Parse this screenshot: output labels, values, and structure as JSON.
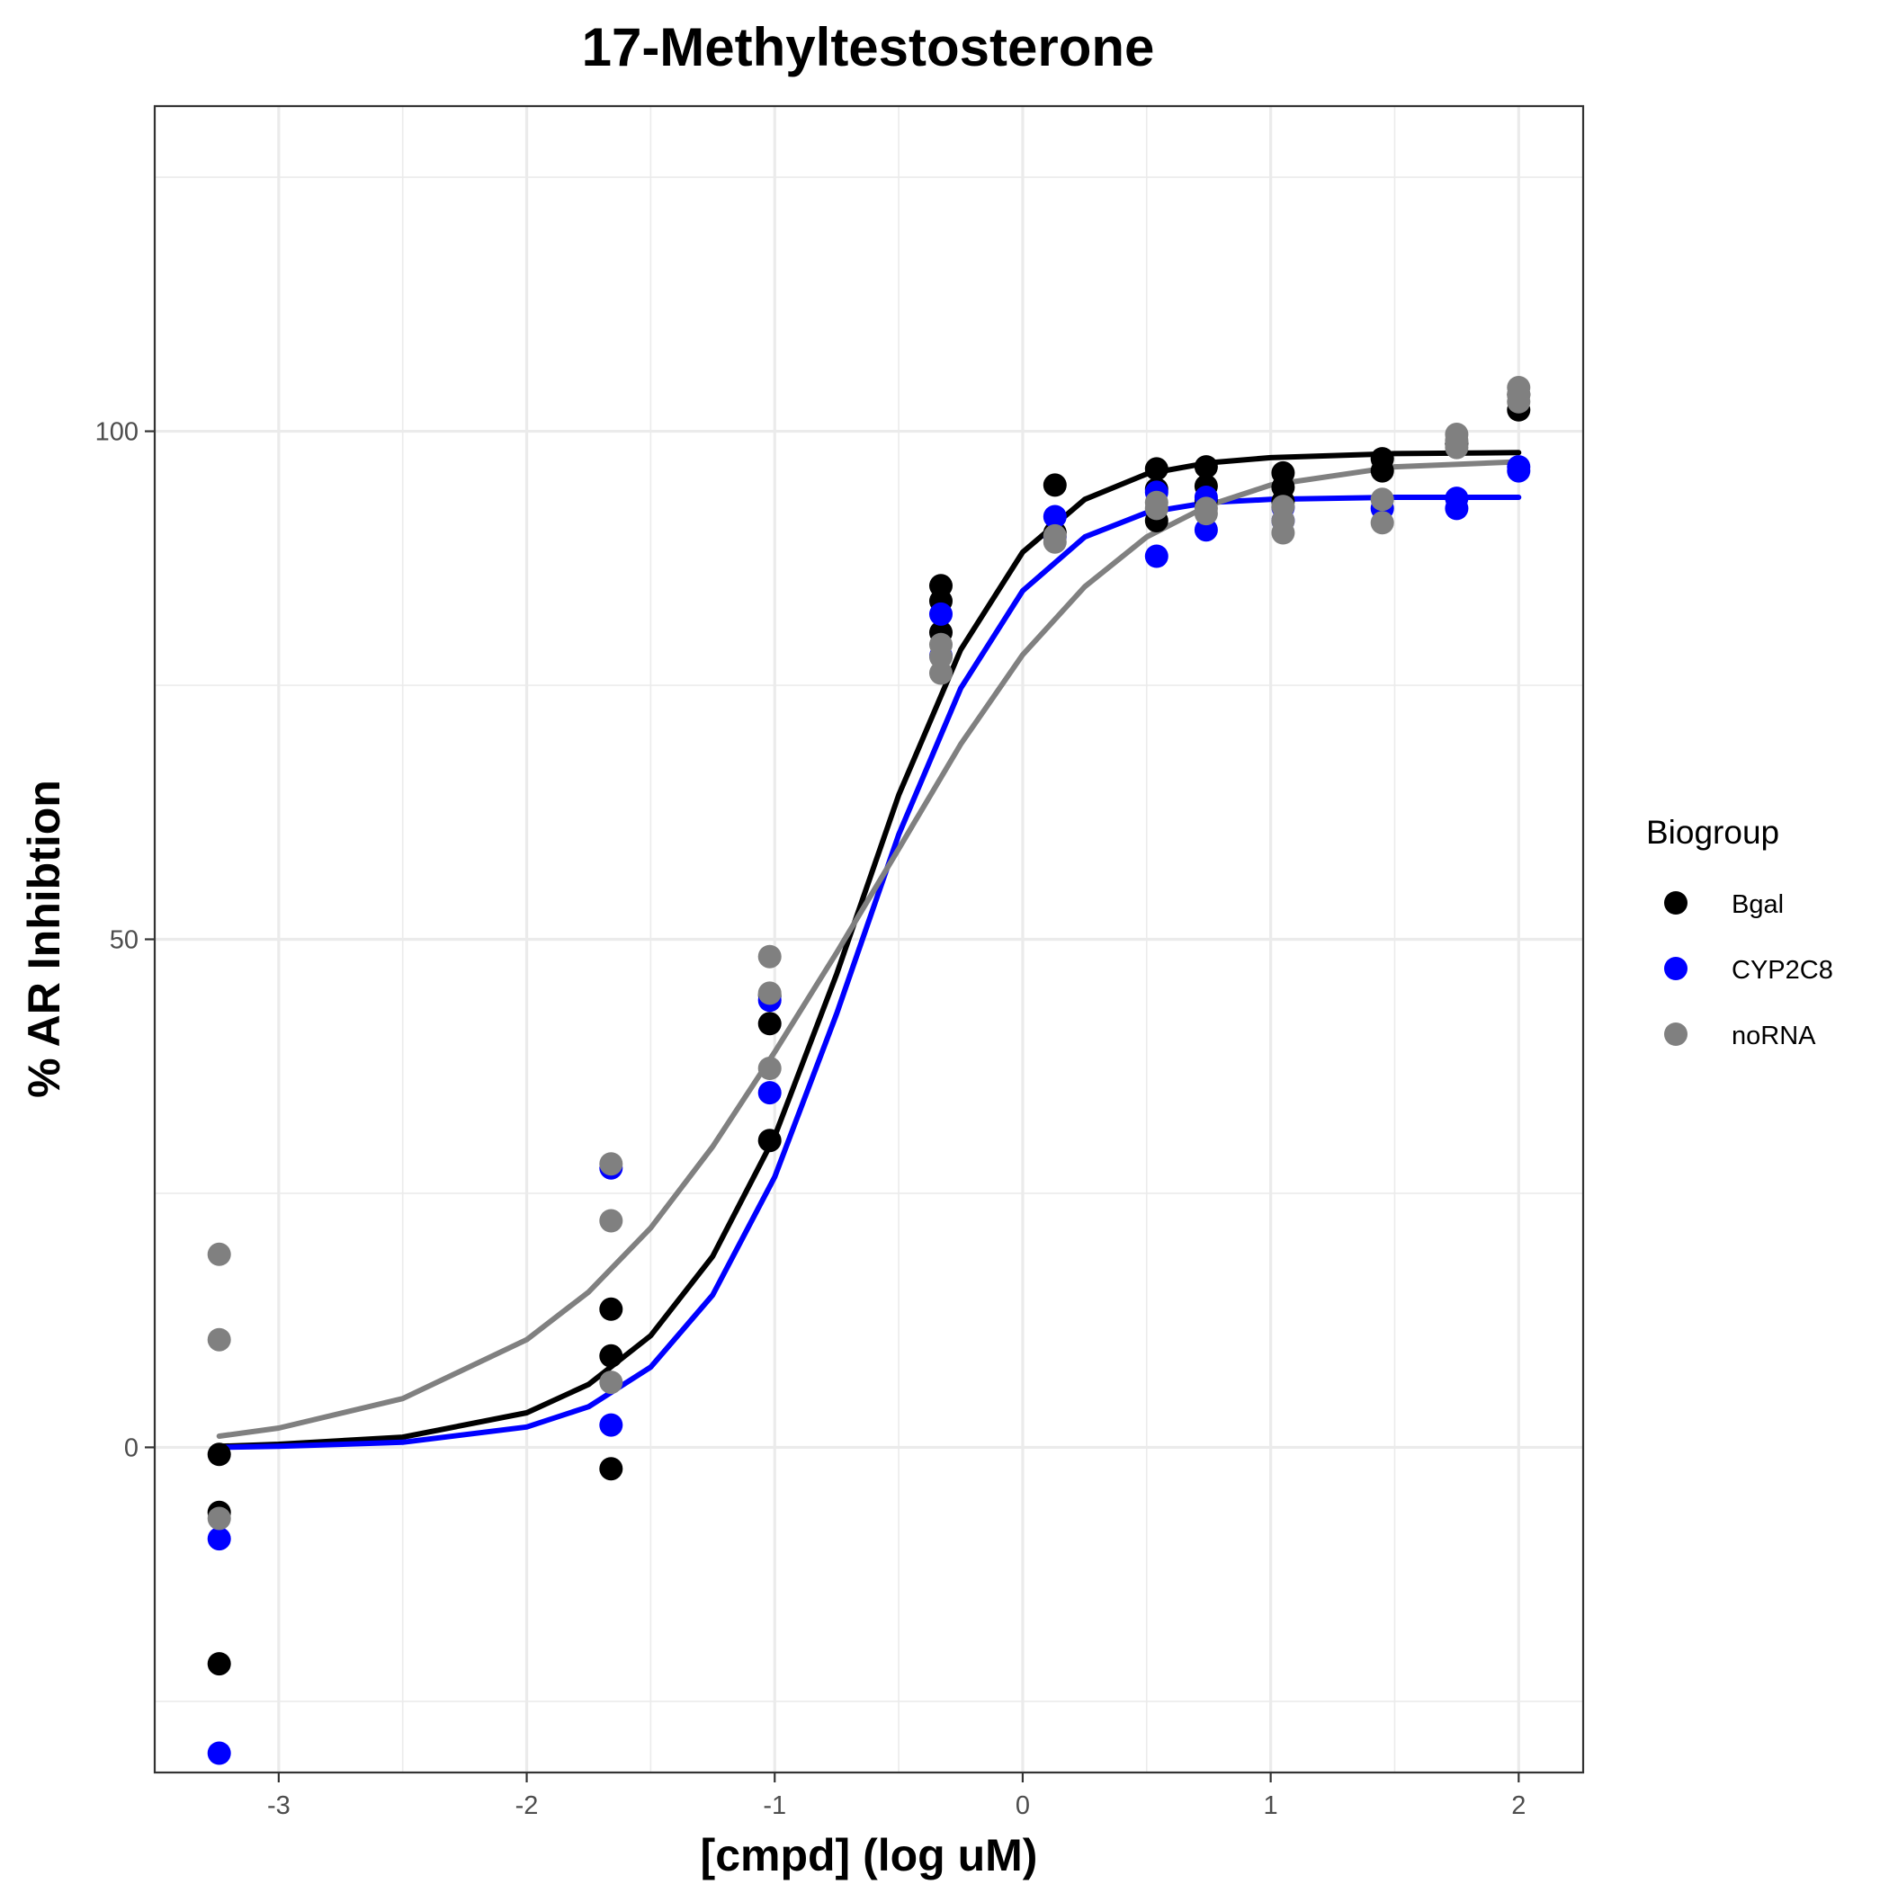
{
  "chart_data": {
    "type": "scatter",
    "title": "17-Methyltestosterone",
    "xlabel": "[cmpd] (log uM)",
    "ylabel": "% AR Inhibtion",
    "xlim": [
      -3.5,
      2.26
    ],
    "ylim": [
      -32,
      132
    ],
    "x_ticks": [
      -3,
      -2,
      -1,
      0,
      1,
      2
    ],
    "x_tick_labels": [
      "-3",
      "-2",
      "-1",
      "0",
      "1",
      "2"
    ],
    "y_ticks": [
      0,
      50,
      100
    ],
    "y_tick_labels": [
      "0",
      "50",
      "100"
    ],
    "grid": true,
    "legend": {
      "title": "Biogroup",
      "position": "right"
    },
    "series": [
      {
        "name": "Bgal",
        "color": "#000000",
        "points": [
          [
            -3.24,
            -0.7
          ],
          [
            -3.24,
            -6.4
          ],
          [
            -3.24,
            -21.3
          ],
          [
            -1.66,
            13.6
          ],
          [
            -1.66,
            9.0
          ],
          [
            -1.66,
            -2.1
          ],
          [
            -1.02,
            44.5
          ],
          [
            -1.02,
            41.7
          ],
          [
            -1.02,
            30.2
          ],
          [
            -0.33,
            84.8
          ],
          [
            -0.33,
            83.3
          ],
          [
            -0.33,
            80.2
          ],
          [
            0.13,
            94.7
          ],
          [
            0.13,
            90.0
          ],
          [
            0.54,
            96.3
          ],
          [
            0.54,
            94.3
          ],
          [
            0.54,
            91.2
          ],
          [
            0.74,
            96.5
          ],
          [
            0.74,
            94.6
          ],
          [
            0.74,
            93.2
          ],
          [
            1.05,
            95.9
          ],
          [
            1.05,
            94.5
          ],
          [
            1.05,
            93.1
          ],
          [
            1.45,
            97.3
          ],
          [
            1.45,
            96.1
          ],
          [
            1.75,
            98.8
          ],
          [
            2.0,
            102.1
          ],
          [
            2.0,
            103.6
          ]
        ],
        "fit": [
          [
            -3.24,
            0.1
          ],
          [
            -3.0,
            0.3
          ],
          [
            -2.5,
            1.0
          ],
          [
            -2.0,
            3.4
          ],
          [
            -1.75,
            6.2
          ],
          [
            -1.5,
            11.0
          ],
          [
            -1.25,
            18.8
          ],
          [
            -1.0,
            30.6
          ],
          [
            -0.75,
            46.6
          ],
          [
            -0.5,
            64.2
          ],
          [
            -0.25,
            78.5
          ],
          [
            0.0,
            88.1
          ],
          [
            0.25,
            93.3
          ],
          [
            0.5,
            95.8
          ],
          [
            0.75,
            96.9
          ],
          [
            1.0,
            97.4
          ],
          [
            1.5,
            97.8
          ],
          [
            2.0,
            97.9
          ]
        ]
      },
      {
        "name": "CYP2C8",
        "color": "#0000ff",
        "points": [
          [
            -3.24,
            -9.0
          ],
          [
            -3.24,
            -30.1
          ],
          [
            -1.66,
            27.5
          ],
          [
            -1.66,
            2.2
          ],
          [
            -1.02,
            34.9
          ],
          [
            -1.02,
            44.0
          ],
          [
            -0.33,
            82.0
          ],
          [
            -0.33,
            77.9
          ],
          [
            0.13,
            91.6
          ],
          [
            0.13,
            89.6
          ],
          [
            0.54,
            94.0
          ],
          [
            0.54,
            87.7
          ],
          [
            0.74,
            90.3
          ],
          [
            0.74,
            93.5
          ],
          [
            1.05,
            92.5
          ],
          [
            1.05,
            91.2
          ],
          [
            1.45,
            92.4
          ],
          [
            1.75,
            93.4
          ],
          [
            1.75,
            92.4
          ],
          [
            2.0,
            96.1
          ],
          [
            2.0,
            96.5
          ]
        ],
        "fit": [
          [
            -3.24,
            0.0
          ],
          [
            -3.0,
            0.1
          ],
          [
            -2.5,
            0.5
          ],
          [
            -2.0,
            2.0
          ],
          [
            -1.75,
            4.0
          ],
          [
            -1.5,
            7.9
          ],
          [
            -1.25,
            15.0
          ],
          [
            -1.0,
            26.6
          ],
          [
            -0.75,
            42.7
          ],
          [
            -0.5,
            60.3
          ],
          [
            -0.25,
            74.7
          ],
          [
            0.0,
            84.3
          ],
          [
            0.25,
            89.6
          ],
          [
            0.5,
            92.0
          ],
          [
            0.75,
            93.0
          ],
          [
            1.0,
            93.3
          ],
          [
            1.5,
            93.5
          ],
          [
            2.0,
            93.5
          ]
        ]
      },
      {
        "name": "noRNA",
        "color": "#808080",
        "points": [
          [
            -3.24,
            19.0
          ],
          [
            -3.24,
            10.6
          ],
          [
            -3.24,
            -7.0
          ],
          [
            -1.66,
            27.9
          ],
          [
            -1.66,
            22.3
          ],
          [
            -1.66,
            6.4
          ],
          [
            -1.02,
            48.3
          ],
          [
            -1.02,
            44.7
          ],
          [
            -1.02,
            37.3
          ],
          [
            -0.33,
            79.0
          ],
          [
            -0.33,
            77.8
          ],
          [
            -0.33,
            76.2
          ],
          [
            0.13,
            89.7
          ],
          [
            0.13,
            89.1
          ],
          [
            0.54,
            93.0
          ],
          [
            0.54,
            92.4
          ],
          [
            0.74,
            92.4
          ],
          [
            0.74,
            91.9
          ],
          [
            1.05,
            92.6
          ],
          [
            1.05,
            91.2
          ],
          [
            1.05,
            90.0
          ],
          [
            1.45,
            93.3
          ],
          [
            1.45,
            91.0
          ],
          [
            1.75,
            99.7
          ],
          [
            1.75,
            99.1
          ],
          [
            1.75,
            98.4
          ],
          [
            2.0,
            104.3
          ],
          [
            2.0,
            103.6
          ],
          [
            2.0,
            102.9
          ]
        ],
        "fit": [
          [
            -3.24,
            1.1
          ],
          [
            -3.0,
            1.9
          ],
          [
            -2.5,
            4.8
          ],
          [
            -2.0,
            10.6
          ],
          [
            -1.75,
            15.3
          ],
          [
            -1.5,
            21.6
          ],
          [
            -1.25,
            29.6
          ],
          [
            -1.0,
            38.9
          ],
          [
            -0.75,
            48.7
          ],
          [
            -0.5,
            58.9
          ],
          [
            -0.25,
            69.2
          ],
          [
            0.0,
            78.0
          ],
          [
            0.25,
            84.7
          ],
          [
            0.5,
            89.6
          ],
          [
            0.75,
            92.7
          ],
          [
            1.0,
            94.7
          ],
          [
            1.5,
            96.5
          ],
          [
            2.0,
            97.0
          ]
        ]
      }
    ]
  }
}
